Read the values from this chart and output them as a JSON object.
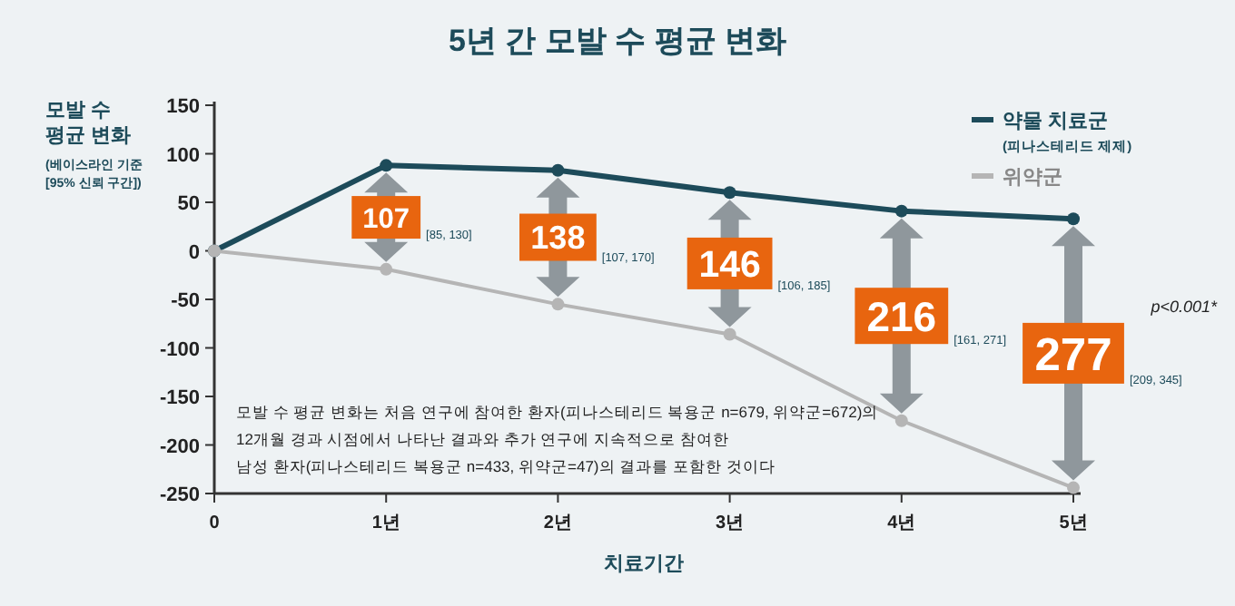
{
  "chart_data": {
    "type": "line",
    "title": "5년 간 모발 수 평균 변화",
    "ylabel": "모발 수 평균 변화",
    "xlabel": "치료기간",
    "categories": [
      "0",
      "1년",
      "2년",
      "3년",
      "4년",
      "5년"
    ],
    "series": [
      {
        "name": "약물 치료군 (피나스테리드 제제)",
        "color": "#1d4b5a",
        "values": [
          0,
          88,
          83,
          60,
          41,
          33
        ]
      },
      {
        "name": "위약군",
        "color": "#b5b5b5",
        "values": [
          0,
          -19,
          -55,
          -86,
          -175,
          -244
        ]
      }
    ],
    "ylim": [
      -250,
      150
    ],
    "yticks": [
      -250,
      -200,
      -150,
      -100,
      -50,
      0,
      50,
      100,
      150
    ],
    "grid": false,
    "legend": "top right",
    "marker": "circle",
    "line_style": "solid",
    "annotations": [
      "(베이스라인 기준",
      "[95% 신뢰 구간])",
      "p<0.001*",
      "모발 수 평균 변화는 처음 연구에 참여한 환자(피나스테리드 복용군 n=679, 위약군=672)의",
      "12개월 경과 시점에서 나타난 결과와 추가 연구에 지속적으로 참여한",
      "남성 환자(피나스테리드 복용군 n=433, 위약군=47)의 결과를 포함한 것이다",
      "107",
      "138",
      "146",
      "216",
      "277",
      "[85, 130]",
      "[107, 170]",
      "[106, 185]",
      "[161, 271]",
      "[209, 345]"
    ]
  }
}
